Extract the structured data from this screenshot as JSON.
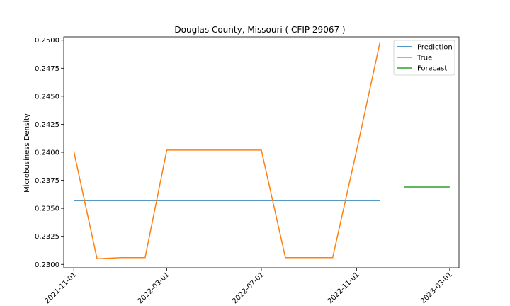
{
  "chart_data": {
    "type": "line",
    "title": "Douglas County, Missouri ( CFIP 29067 )",
    "xlabel": "",
    "ylabel": "Microbusiness Density",
    "x_ticks": [
      "2021-11-01",
      "2022-03-01",
      "2022-07-01",
      "2022-11-01",
      "2023-03-01"
    ],
    "y_ticks": [
      "0.2300",
      "0.2325",
      "0.2350",
      "0.2375",
      "0.2400",
      "0.2425",
      "0.2450",
      "0.2475",
      "0.2500"
    ],
    "ylim": [
      0.2297,
      0.2503
    ],
    "xlim": [
      "2021-10-19",
      "2023-03-13"
    ],
    "grid": false,
    "legend_position": "top-right",
    "series": [
      {
        "name": "Prediction",
        "color": "#1f77b4",
        "points": [
          {
            "x": "2021-11-01",
            "y": 0.2357
          },
          {
            "x": "2022-12-01",
            "y": 0.2357
          }
        ]
      },
      {
        "name": "True",
        "color": "#ff7f0e",
        "points": [
          {
            "x": "2021-11-01",
            "y": 0.2401
          },
          {
            "x": "2021-12-01",
            "y": 0.2305
          },
          {
            "x": "2022-01-01",
            "y": 0.2306
          },
          {
            "x": "2022-02-01",
            "y": 0.2306
          },
          {
            "x": "2022-03-01",
            "y": 0.2402
          },
          {
            "x": "2022-04-01",
            "y": 0.2402
          },
          {
            "x": "2022-05-01",
            "y": 0.2402
          },
          {
            "x": "2022-06-01",
            "y": 0.2402
          },
          {
            "x": "2022-07-01",
            "y": 0.2402
          },
          {
            "x": "2022-08-01",
            "y": 0.2306
          },
          {
            "x": "2022-09-01",
            "y": 0.2306
          },
          {
            "x": "2022-10-01",
            "y": 0.2306
          },
          {
            "x": "2022-11-01",
            "y": 0.2402
          },
          {
            "x": "2022-12-01",
            "y": 0.2498
          }
        ]
      },
      {
        "name": "Forecast",
        "color": "#2ca02c",
        "points": [
          {
            "x": "2023-01-01",
            "y": 0.2369
          },
          {
            "x": "2023-03-01",
            "y": 0.2369
          }
        ]
      }
    ]
  }
}
